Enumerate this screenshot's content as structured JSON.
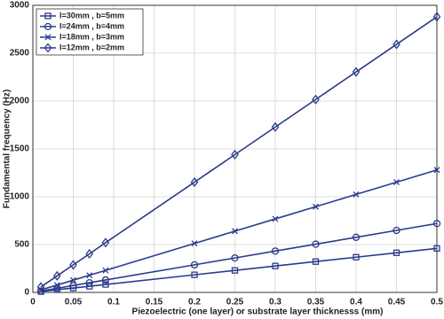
{
  "chart_data": {
    "type": "line",
    "x_label": "Piezoelectric (one layer) or substrate layer thicknesss (mm)",
    "y_label": "Fundamental frequency (Hz)",
    "x": [
      0.01,
      0.03,
      0.05,
      0.07,
      0.09,
      0.2,
      0.25,
      0.3,
      0.35,
      0.4,
      0.45,
      0.5
    ],
    "series": [
      {
        "name": "l=30mm , b=5mm",
        "color": "#2a3b8c",
        "marker": "square",
        "values": [
          9,
          28,
          46,
          64,
          83,
          184,
          230,
          276,
          322,
          368,
          414,
          460
        ]
      },
      {
        "name": "l=24mm , b=4mm",
        "color": "#2a3b8c",
        "marker": "circle",
        "values": [
          14,
          43,
          72,
          101,
          130,
          288,
          360,
          432,
          504,
          576,
          648,
          720
        ]
      },
      {
        "name": "l=18mm , b=3mm",
        "color": "#2a3b8c",
        "marker": "x",
        "values": [
          26,
          77,
          128,
          179,
          230,
          512,
          640,
          768,
          896,
          1024,
          1152,
          1280
        ]
      },
      {
        "name": "l=12mm , b=2mm",
        "color": "#2a3b8c",
        "marker": "diamond",
        "values": [
          57,
          173,
          288,
          403,
          520,
          1152,
          1440,
          1728,
          2016,
          2304,
          2592,
          2880
        ]
      }
    ],
    "xlim": [
      0,
      0.5
    ],
    "xticks": [
      0,
      0.05,
      0.1,
      0.15,
      0.2,
      0.25,
      0.3,
      0.35,
      0.4,
      0.45,
      0.5
    ],
    "ylim": [
      0,
      3000
    ],
    "yticks": [
      0,
      500,
      1000,
      1500,
      2000,
      2500,
      3000
    ],
    "grid": true,
    "legend": "top-left"
  }
}
